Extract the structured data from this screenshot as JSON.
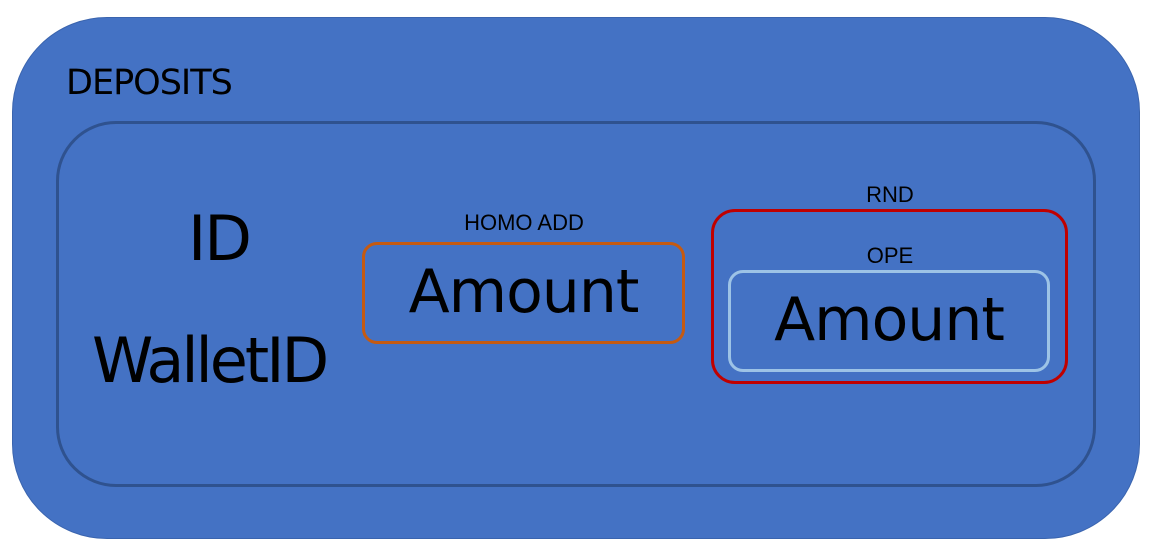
{
  "diagram": {
    "title": "DEPOSITS",
    "fields": {
      "id": "ID",
      "wallet_id": "WalletID"
    },
    "homo_add": {
      "label": "HOMO ADD",
      "content": "Amount"
    },
    "rnd": {
      "label": "RND",
      "ope": {
        "label": "OPE",
        "content": "Amount"
      }
    },
    "colors": {
      "background_fill": "#4472c4",
      "inner_border": "#2f528f",
      "homo_add_border": "#c55a11",
      "rnd_border": "#c00000",
      "ope_border": "#9dc3e6"
    }
  }
}
